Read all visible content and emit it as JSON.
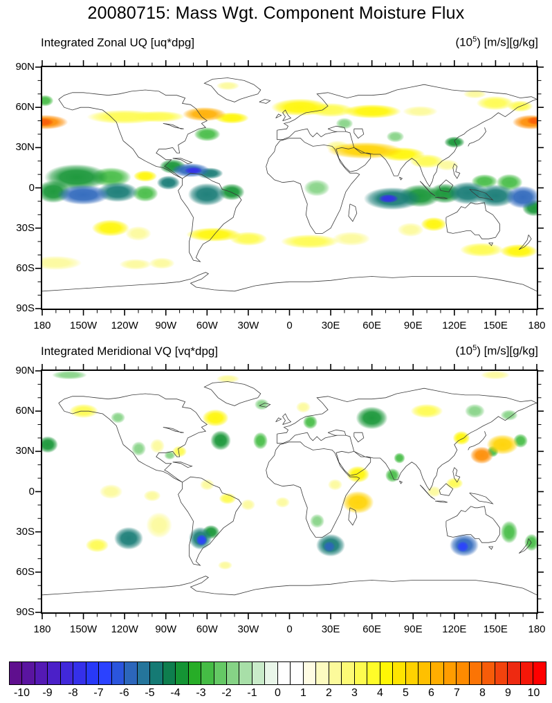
{
  "title": "20080715: Mass Wgt. Component Moisture Flux",
  "panels": [
    {
      "title": "Integrated Zonal UQ [uq*dpg]",
      "units_prefix": "(10",
      "units_exp": "5",
      "units_suffix": ") [m/s][g/kg]"
    },
    {
      "title": "Integrated Meridional VQ [vq*dpg]",
      "units_prefix": "(10",
      "units_exp": "5",
      "units_suffix": ") [m/s][g/kg]"
    }
  ],
  "axes": {
    "lat_labels": [
      "90N",
      "60N",
      "30N",
      "0",
      "30S",
      "60S",
      "90S"
    ],
    "lon_labels": [
      "180",
      "150W",
      "120W",
      "90W",
      "60W",
      "30W",
      "0",
      "30E",
      "60E",
      "90E",
      "120E",
      "150E",
      "180"
    ]
  },
  "colorbar": {
    "labels": [
      "-10",
      "-9",
      "-8",
      "-7",
      "-6",
      "-5",
      "-4",
      "-3",
      "-2",
      "-1",
      "0",
      "1",
      "2",
      "3",
      "4",
      "5",
      "6",
      "7",
      "8",
      "9",
      "10"
    ],
    "colors": [
      "#5f0f8e",
      "#5a14a0",
      "#5419b4",
      "#4b20c8",
      "#4128da",
      "#3530ea",
      "#2839f8",
      "#2b42ff",
      "#2b55dd",
      "#2c66bb",
      "#25759b",
      "#157a74",
      "#0e7e4e",
      "#149434",
      "#27ad27",
      "#45bc45",
      "#65c965",
      "#86d386",
      "#a8dfa8",
      "#c9ebc9",
      "#e9f6e9",
      "#ffffff",
      "#ffffff",
      "#fffce3",
      "#fdfbc0",
      "#fcfa9b",
      "#fdfa76",
      "#fefb4f",
      "#fffc29",
      "#fff605",
      "#ffe400",
      "#ffd200",
      "#ffc000",
      "#ffae00",
      "#ff9d00",
      "#fe8b00",
      "#fb7405",
      "#f75c09",
      "#f3430d",
      "#ee2a11",
      "#f51708",
      "#ff0000"
    ]
  },
  "chart_data": {
    "type": "heatmap",
    "subtype": "filled_contour_world_map",
    "projection": "equirectangular",
    "title": "20080715: Mass Wgt. Component Moisture Flux",
    "units": "(10^5) [m/s][g/kg]",
    "contour_levels": {
      "min": -10.5,
      "max": 10.5,
      "step": 0.5
    },
    "lat_range": [
      -90,
      90
    ],
    "lon_range": [
      -180,
      180
    ],
    "feature_format": [
      "lon_deg",
      "lat_deg",
      "radius_lon_deg",
      "radius_lat_deg",
      "peak_value"
    ],
    "panels": [
      {
        "name": "Integrated Zonal UQ [uq*dpg]",
        "features": [
          [
            -178,
            49,
            16,
            5,
            7
          ],
          [
            -179,
            49,
            7,
            3,
            8
          ],
          [
            176,
            49,
            13,
            5,
            7
          ],
          [
            179,
            50,
            6,
            3,
            8
          ],
          [
            -120,
            53,
            26,
            5,
            3
          ],
          [
            -95,
            53,
            18,
            4,
            3
          ],
          [
            -62,
            55,
            15,
            5,
            6
          ],
          [
            -42,
            52,
            12,
            4,
            4
          ],
          [
            8,
            60,
            20,
            6,
            4
          ],
          [
            30,
            58,
            16,
            5,
            3
          ],
          [
            60,
            57,
            20,
            5,
            4
          ],
          [
            95,
            57,
            12,
            4,
            2
          ],
          [
            150,
            63,
            13,
            5,
            3
          ],
          [
            168,
            61,
            9,
            4,
            3
          ],
          [
            -45,
            76,
            8,
            3,
            2
          ],
          [
            135,
            70,
            8,
            3,
            2
          ],
          [
            -178,
            65,
            6,
            4,
            -3
          ],
          [
            -60,
            40,
            9,
            5,
            -3
          ],
          [
            120,
            34,
            7,
            4,
            -4
          ],
          [
            77,
            38,
            6,
            4,
            -2
          ],
          [
            40,
            48,
            6,
            4,
            -2
          ],
          [
            55,
            28,
            26,
            6,
            5
          ],
          [
            82,
            25,
            16,
            5,
            4
          ],
          [
            100,
            20,
            12,
            5,
            3
          ],
          [
            35,
            31,
            8,
            4,
            2
          ],
          [
            115,
            17,
            8,
            4,
            2
          ],
          [
            -155,
            8,
            22,
            9,
            -4
          ],
          [
            -130,
            8,
            14,
            7,
            -3
          ],
          [
            -172,
            -3,
            12,
            8,
            -4
          ],
          [
            -150,
            -5,
            18,
            7,
            -6
          ],
          [
            -125,
            -3,
            14,
            7,
            -5
          ],
          [
            -105,
            -4,
            9,
            6,
            -3
          ],
          [
            -85,
            16,
            9,
            5,
            -4
          ],
          [
            -72,
            13,
            13,
            5,
            -6
          ],
          [
            -70,
            13,
            6,
            2.5,
            -8
          ],
          [
            -58,
            11,
            9,
            4,
            -5
          ],
          [
            -88,
            4,
            8,
            5,
            -5
          ],
          [
            -60,
            -5,
            13,
            8,
            -5
          ],
          [
            -42,
            -3,
            9,
            6,
            -4
          ],
          [
            20,
            0,
            9,
            6,
            -2
          ],
          [
            75,
            -8,
            20,
            8,
            -5
          ],
          [
            72,
            -8,
            7,
            3,
            -8
          ],
          [
            95,
            -6,
            14,
            8,
            -4
          ],
          [
            113,
            -4,
            11,
            7,
            -4
          ],
          [
            130,
            -4,
            14,
            8,
            -5
          ],
          [
            150,
            -6,
            14,
            8,
            -5
          ],
          [
            170,
            -7,
            12,
            8,
            -6
          ],
          [
            178,
            -15,
            8,
            6,
            -4
          ],
          [
            160,
            4,
            9,
            6,
            -3
          ],
          [
            142,
            5,
            9,
            5,
            -3
          ],
          [
            -105,
            9,
            8,
            4,
            4
          ],
          [
            -130,
            -30,
            13,
            6,
            4
          ],
          [
            -110,
            -34,
            9,
            5,
            2
          ],
          [
            -55,
            -35,
            19,
            5,
            4
          ],
          [
            -30,
            -38,
            13,
            5,
            3
          ],
          [
            15,
            -40,
            20,
            5,
            3
          ],
          [
            45,
            -38,
            13,
            5,
            2
          ],
          [
            105,
            -27,
            9,
            5,
            4
          ],
          [
            88,
            -31,
            9,
            5,
            2
          ],
          [
            140,
            -46,
            15,
            5,
            3
          ],
          [
            167,
            -47,
            13,
            5,
            4
          ],
          [
            -170,
            -56,
            18,
            5,
            2
          ],
          [
            -112,
            -57,
            11,
            4,
            2
          ],
          [
            -93,
            -56,
            9,
            4,
            2
          ]
        ]
      },
      {
        "name": "Integrated Meridional VQ [vq*dpg]",
        "features": [
          [
            -176,
            35,
            7,
            6,
            -4
          ],
          [
            -150,
            60,
            10,
            5,
            3
          ],
          [
            -125,
            55,
            5,
            4,
            -2
          ],
          [
            -110,
            32,
            5,
            5,
            -2
          ],
          [
            -96,
            34,
            5,
            5,
            2
          ],
          [
            -80,
            30,
            5,
            4,
            3
          ],
          [
            -87,
            27,
            4,
            3,
            -2
          ],
          [
            -54,
            55,
            9,
            6,
            4
          ],
          [
            -50,
            38,
            7,
            7,
            -4
          ],
          [
            -21,
            38,
            5,
            6,
            -3
          ],
          [
            -20,
            65,
            5,
            4,
            -2
          ],
          [
            -45,
            84,
            8,
            3,
            2
          ],
          [
            -160,
            87,
            12,
            3,
            -2
          ],
          [
            150,
            87,
            10,
            3,
            2
          ],
          [
            15,
            52,
            5,
            5,
            -3
          ],
          [
            10,
            63,
            5,
            4,
            2
          ],
          [
            60,
            55,
            11,
            8,
            -4
          ],
          [
            100,
            60,
            11,
            5,
            3
          ],
          [
            135,
            60,
            7,
            5,
            -2
          ],
          [
            160,
            57,
            6,
            4,
            -2
          ],
          [
            125,
            40,
            6,
            5,
            4
          ],
          [
            140,
            27,
            8,
            6,
            7
          ],
          [
            155,
            35,
            11,
            7,
            5
          ],
          [
            168,
            38,
            5,
            5,
            -3
          ],
          [
            148,
            30,
            4,
            4,
            -3
          ],
          [
            50,
            -8,
            11,
            8,
            5
          ],
          [
            50,
            13,
            8,
            6,
            4
          ],
          [
            75,
            12,
            5,
            5,
            -3
          ],
          [
            80,
            25,
            4,
            4,
            -3
          ],
          [
            120,
            6,
            6,
            4,
            3
          ],
          [
            105,
            0,
            5,
            4,
            2
          ],
          [
            33,
            5,
            5,
            4,
            2
          ],
          [
            -140,
            -40,
            8,
            5,
            3
          ],
          [
            -117,
            -35,
            10,
            8,
            -5
          ],
          [
            -95,
            -25,
            9,
            9,
            2
          ],
          [
            -65,
            -35,
            8,
            8,
            -5
          ],
          [
            -64,
            -36,
            4,
            4,
            -7
          ],
          [
            -57,
            -30,
            6,
            5,
            -4
          ],
          [
            -47,
            -55,
            5,
            3,
            2
          ],
          [
            30,
            -40,
            10,
            8,
            -5
          ],
          [
            29,
            -41,
            4,
            4,
            -6
          ],
          [
            20,
            -22,
            5,
            5,
            -2
          ],
          [
            127,
            -40,
            10,
            8,
            -6
          ],
          [
            126,
            -41,
            4,
            4,
            -7
          ],
          [
            160,
            -30,
            6,
            8,
            -3
          ],
          [
            176,
            -38,
            5,
            6,
            -3
          ],
          [
            -130,
            0,
            8,
            5,
            2
          ],
          [
            -100,
            -3,
            6,
            4,
            2
          ],
          [
            -45,
            -5,
            6,
            4,
            3
          ],
          [
            -60,
            5,
            5,
            4,
            2
          ],
          [
            -30,
            -10,
            5,
            4,
            2
          ],
          [
            -5,
            -8,
            5,
            4,
            2
          ]
        ]
      }
    ]
  }
}
